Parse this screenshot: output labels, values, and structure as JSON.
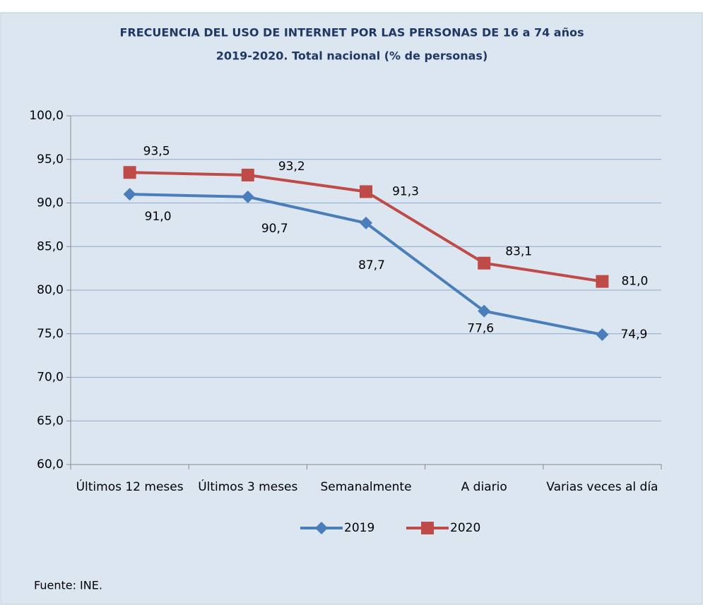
{
  "chart_data": {
    "type": "line",
    "title": "FRECUENCIA DEL USO DE INTERNET POR LAS PERSONAS DE 16 a 74 años",
    "subtitle": "2019-2020. Total nacional (% de personas)",
    "categories": [
      "Últimos 12 meses",
      "Últimos 3 meses",
      "Semanalmente",
      "A diario",
      "Varias veces al día"
    ],
    "series": [
      {
        "name": "2019",
        "color": "#4a7ebb",
        "marker": "diamond",
        "values": [
          91.0,
          90.7,
          87.7,
          77.6,
          74.9
        ],
        "value_labels": [
          "91,0",
          "90,7",
          "87,7",
          "77,6",
          "74,9"
        ]
      },
      {
        "name": "2020",
        "color": "#be4b48",
        "marker": "square",
        "values": [
          93.5,
          93.2,
          91.3,
          83.1,
          81.0
        ],
        "value_labels": [
          "93,5",
          "93,2",
          "91,3",
          "83,1",
          "81,0"
        ]
      }
    ],
    "ylim": [
      60,
      100
    ],
    "yticks": [
      {
        "value": 60,
        "label": "60,0"
      },
      {
        "value": 65,
        "label": "65,0"
      },
      {
        "value": 70,
        "label": "70,0"
      },
      {
        "value": 75,
        "label": "75,0"
      },
      {
        "value": 80,
        "label": "80,0"
      },
      {
        "value": 85,
        "label": "85,0"
      },
      {
        "value": 90,
        "label": "90,0"
      },
      {
        "value": 95,
        "label": "95,0"
      },
      {
        "value": 100,
        "label": "100,0"
      }
    ],
    "grid": true,
    "legend": "bottom",
    "source": "Fuente: INE."
  }
}
